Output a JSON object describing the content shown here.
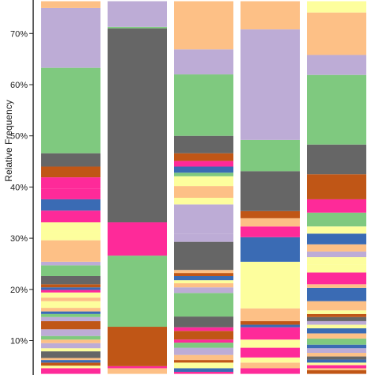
{
  "chart_data": {
    "type": "bar",
    "stacked": true,
    "ylabel": "Relative Frequency",
    "yticks": [
      "10%",
      "20%",
      "30%",
      "40%",
      "50%",
      "60%",
      "70%"
    ],
    "ytick_values": [
      10,
      20,
      30,
      40,
      50,
      60,
      70
    ],
    "ylim": [
      3.5,
      76.3
    ],
    "legend": "none",
    "grid": false,
    "bars": [
      {
        "segments": [
          {
            "from": 3.5,
            "to": 4.6,
            "color": "#fe2a99"
          },
          {
            "from": 4.6,
            "to": 5.1,
            "color": "#fdfe9d"
          },
          {
            "from": 5.1,
            "to": 5.7,
            "color": "#c05616"
          },
          {
            "from": 5.7,
            "to": 6.2,
            "color": "#3a6bb4"
          },
          {
            "from": 6.2,
            "to": 6.6,
            "color": "#fdc086"
          },
          {
            "from": 6.6,
            "to": 7.9,
            "color": "#666666"
          },
          {
            "from": 7.9,
            "to": 8.5,
            "color": "#fdfe9d"
          },
          {
            "from": 8.5,
            "to": 9.5,
            "color": "#bdacd6"
          },
          {
            "from": 9.5,
            "to": 10.2,
            "color": "#fdc086"
          },
          {
            "from": 10.2,
            "to": 10.9,
            "color": "#7fc97f"
          },
          {
            "from": 10.9,
            "to": 12.2,
            "color": "#bdacd6"
          },
          {
            "from": 12.2,
            "to": 13.8,
            "color": "#c05616"
          },
          {
            "from": 13.8,
            "to": 14.6,
            "color": "#bdacd6"
          },
          {
            "from": 14.6,
            "to": 15.2,
            "color": "#7fc97f"
          },
          {
            "from": 15.2,
            "to": 15.7,
            "color": "#3a6bb4"
          },
          {
            "from": 15.7,
            "to": 16.4,
            "color": "#fdc086"
          },
          {
            "from": 16.4,
            "to": 17.7,
            "color": "#fdfe9d"
          },
          {
            "from": 17.7,
            "to": 18.4,
            "color": "#fdc086"
          },
          {
            "from": 18.4,
            "to": 19.4,
            "color": "#fdfe9d"
          },
          {
            "from": 19.4,
            "to": 19.9,
            "color": "#fe2a99"
          },
          {
            "from": 19.9,
            "to": 20.4,
            "color": "#3a6bb4"
          },
          {
            "from": 20.4,
            "to": 21.0,
            "color": "#c05616"
          },
          {
            "from": 21.0,
            "to": 22.6,
            "color": "#666666"
          },
          {
            "from": 22.6,
            "to": 24.7,
            "color": "#7fc97f"
          },
          {
            "from": 24.7,
            "to": 25.4,
            "color": "#bdacd6"
          },
          {
            "from": 25.4,
            "to": 29.6,
            "color": "#fdc086"
          },
          {
            "from": 29.6,
            "to": 31.1,
            "color": "#fdfe9d"
          },
          {
            "from": 31.1,
            "to": 33.1,
            "color": "#fdfe9d"
          },
          {
            "from": 33.1,
            "to": 35.4,
            "color": "#fe2a99"
          },
          {
            "from": 35.4,
            "to": 37.6,
            "color": "#3a6bb4"
          },
          {
            "from": 37.6,
            "to": 39.7,
            "color": "#fe2a99"
          },
          {
            "from": 39.7,
            "to": 41.9,
            "color": "#fe2a99"
          },
          {
            "from": 41.9,
            "to": 44.0,
            "color": "#c05616"
          },
          {
            "from": 44.0,
            "to": 46.6,
            "color": "#666666"
          },
          {
            "from": 46.6,
            "to": 63.3,
            "color": "#7fc97f"
          },
          {
            "from": 63.3,
            "to": 75.0,
            "color": "#bdacd6"
          },
          {
            "from": 75.0,
            "to": 76.3,
            "color": "#fdc086"
          }
        ]
      },
      {
        "segments": [
          {
            "from": 3.5,
            "to": 4.6,
            "color": "#fdc086"
          },
          {
            "from": 4.6,
            "to": 5.0,
            "color": "#fe2a99"
          },
          {
            "from": 5.0,
            "to": 12.7,
            "color": "#c05616"
          },
          {
            "from": 12.7,
            "to": 26.6,
            "color": "#7fc97f"
          },
          {
            "from": 26.6,
            "to": 33.1,
            "color": "#fe2a99"
          },
          {
            "from": 33.1,
            "to": 71.0,
            "color": "#666666"
          },
          {
            "from": 71.0,
            "to": 71.3,
            "color": "#7fc97f"
          },
          {
            "from": 71.3,
            "to": 76.3,
            "color": "#bdacd6"
          }
        ]
      },
      {
        "segments": [
          {
            "from": 3.5,
            "to": 3.9,
            "color": "#fe2a99"
          },
          {
            "from": 3.9,
            "to": 4.6,
            "color": "#3a6bb4"
          },
          {
            "from": 4.6,
            "to": 5.7,
            "color": "#fdfe9d"
          },
          {
            "from": 5.7,
            "to": 6.2,
            "color": "#c05616"
          },
          {
            "from": 6.2,
            "to": 7.2,
            "color": "#fdc086"
          },
          {
            "from": 7.2,
            "to": 8.6,
            "color": "#bdacd6"
          },
          {
            "from": 8.6,
            "to": 9.6,
            "color": "#7fc97f"
          },
          {
            "from": 9.6,
            "to": 10.2,
            "color": "#fe2a99"
          },
          {
            "from": 10.2,
            "to": 11.9,
            "color": "#c05616"
          },
          {
            "from": 11.9,
            "to": 12.6,
            "color": "#fe2a99"
          },
          {
            "from": 12.6,
            "to": 14.7,
            "color": "#666666"
          },
          {
            "from": 14.7,
            "to": 19.3,
            "color": "#7fc97f"
          },
          {
            "from": 19.3,
            "to": 20.4,
            "color": "#bdacd6"
          },
          {
            "from": 20.4,
            "to": 21.2,
            "color": "#fdc086"
          },
          {
            "from": 21.2,
            "to": 21.8,
            "color": "#fdfe9d"
          },
          {
            "from": 21.8,
            "to": 22.6,
            "color": "#3a6bb4"
          },
          {
            "from": 22.6,
            "to": 23.2,
            "color": "#c05616"
          },
          {
            "from": 23.2,
            "to": 23.8,
            "color": "#fdc086"
          },
          {
            "from": 23.8,
            "to": 29.3,
            "color": "#666666"
          },
          {
            "from": 29.3,
            "to": 30.9,
            "color": "#bdacd6"
          },
          {
            "from": 30.9,
            "to": 36.6,
            "color": "#bdacd6"
          },
          {
            "from": 36.6,
            "to": 37.9,
            "color": "#fdfe9d"
          },
          {
            "from": 37.9,
            "to": 40.2,
            "color": "#fdc086"
          },
          {
            "from": 40.2,
            "to": 42.1,
            "color": "#fdfe9d"
          },
          {
            "from": 42.1,
            "to": 42.8,
            "color": "#7fc97f"
          },
          {
            "from": 42.8,
            "to": 44.0,
            "color": "#3a6bb4"
          },
          {
            "from": 44.0,
            "to": 45.1,
            "color": "#fe2a99"
          },
          {
            "from": 45.1,
            "to": 46.6,
            "color": "#c05616"
          },
          {
            "from": 46.6,
            "to": 50.0,
            "color": "#666666"
          },
          {
            "from": 50.0,
            "to": 62.0,
            "color": "#7fc97f"
          },
          {
            "from": 62.0,
            "to": 66.9,
            "color": "#bdacd6"
          },
          {
            "from": 66.9,
            "to": 76.3,
            "color": "#fdc086"
          }
        ]
      },
      {
        "segments": [
          {
            "from": 3.5,
            "to": 4.6,
            "color": "#fe2a99"
          },
          {
            "from": 4.6,
            "to": 5.7,
            "color": "#fdc086"
          },
          {
            "from": 5.7,
            "to": 6.7,
            "color": "#fdfe9d"
          },
          {
            "from": 6.7,
            "to": 8.6,
            "color": "#fe2a99"
          },
          {
            "from": 8.6,
            "to": 10.2,
            "color": "#fdfe9d"
          },
          {
            "from": 10.2,
            "to": 12.6,
            "color": "#fe2a99"
          },
          {
            "from": 12.6,
            "to": 13.1,
            "color": "#3a6bb4"
          },
          {
            "from": 13.1,
            "to": 13.8,
            "color": "#c05616"
          },
          {
            "from": 13.8,
            "to": 16.3,
            "color": "#fdc086"
          },
          {
            "from": 16.3,
            "to": 25.4,
            "color": "#fdfe9d"
          },
          {
            "from": 25.4,
            "to": 30.2,
            "color": "#3a6bb4"
          },
          {
            "from": 30.2,
            "to": 32.3,
            "color": "#fe2a99"
          },
          {
            "from": 32.3,
            "to": 33.9,
            "color": "#fdc086"
          },
          {
            "from": 33.9,
            "to": 35.3,
            "color": "#c05616"
          },
          {
            "from": 35.3,
            "to": 43.1,
            "color": "#666666"
          },
          {
            "from": 43.1,
            "to": 49.2,
            "color": "#7fc97f"
          },
          {
            "from": 49.2,
            "to": 70.8,
            "color": "#bdacd6"
          },
          {
            "from": 70.8,
            "to": 76.3,
            "color": "#fdc086"
          }
        ]
      },
      {
        "segments": [
          {
            "from": 3.5,
            "to": 4.2,
            "color": "#c05616"
          },
          {
            "from": 4.2,
            "to": 4.6,
            "color": "#fdc086"
          },
          {
            "from": 4.6,
            "to": 5.2,
            "color": "#fe2a99"
          },
          {
            "from": 5.2,
            "to": 5.7,
            "color": "#fdfe9d"
          },
          {
            "from": 5.7,
            "to": 6.3,
            "color": "#3a6bb4"
          },
          {
            "from": 6.3,
            "to": 6.9,
            "color": "#666666"
          },
          {
            "from": 6.9,
            "to": 7.6,
            "color": "#fdc086"
          },
          {
            "from": 7.6,
            "to": 8.5,
            "color": "#bdacd6"
          },
          {
            "from": 8.5,
            "to": 9.2,
            "color": "#3a6bb4"
          },
          {
            "from": 9.2,
            "to": 10.4,
            "color": "#7fc97f"
          },
          {
            "from": 10.4,
            "to": 11.4,
            "color": "#fdc086"
          },
          {
            "from": 11.4,
            "to": 12.4,
            "color": "#3a6bb4"
          },
          {
            "from": 12.4,
            "to": 13.1,
            "color": "#fdfe9d"
          },
          {
            "from": 13.1,
            "to": 13.8,
            "color": "#bdacd6"
          },
          {
            "from": 13.8,
            "to": 14.6,
            "color": "#666666"
          },
          {
            "from": 14.6,
            "to": 15.2,
            "color": "#c05616"
          },
          {
            "from": 15.2,
            "to": 15.9,
            "color": "#fdfe9d"
          },
          {
            "from": 15.9,
            "to": 17.7,
            "color": "#fdc086"
          },
          {
            "from": 17.7,
            "to": 20.3,
            "color": "#3a6bb4"
          },
          {
            "from": 20.3,
            "to": 21.0,
            "color": "#fdc086"
          },
          {
            "from": 21.0,
            "to": 23.3,
            "color": "#fe2a99"
          },
          {
            "from": 23.3,
            "to": 24.9,
            "color": "#fdfe9d"
          },
          {
            "from": 24.9,
            "to": 26.3,
            "color": "#fdfe9d"
          },
          {
            "from": 26.3,
            "to": 27.4,
            "color": "#bdacd6"
          },
          {
            "from": 27.4,
            "to": 28.8,
            "color": "#fdc086"
          },
          {
            "from": 28.8,
            "to": 30.9,
            "color": "#3a6bb4"
          },
          {
            "from": 30.9,
            "to": 32.3,
            "color": "#fdfe9d"
          },
          {
            "from": 32.3,
            "to": 35.0,
            "color": "#7fc97f"
          },
          {
            "from": 35.0,
            "to": 37.6,
            "color": "#fe2a99"
          },
          {
            "from": 37.6,
            "to": 42.5,
            "color": "#c05616"
          },
          {
            "from": 42.5,
            "to": 48.3,
            "color": "#666666"
          },
          {
            "from": 48.3,
            "to": 61.9,
            "color": "#7fc97f"
          },
          {
            "from": 61.9,
            "to": 65.8,
            "color": "#bdacd6"
          },
          {
            "from": 65.8,
            "to": 74.1,
            "color": "#fdc086"
          },
          {
            "from": 74.1,
            "to": 76.3,
            "color": "#fdfe9d"
          }
        ]
      }
    ]
  }
}
